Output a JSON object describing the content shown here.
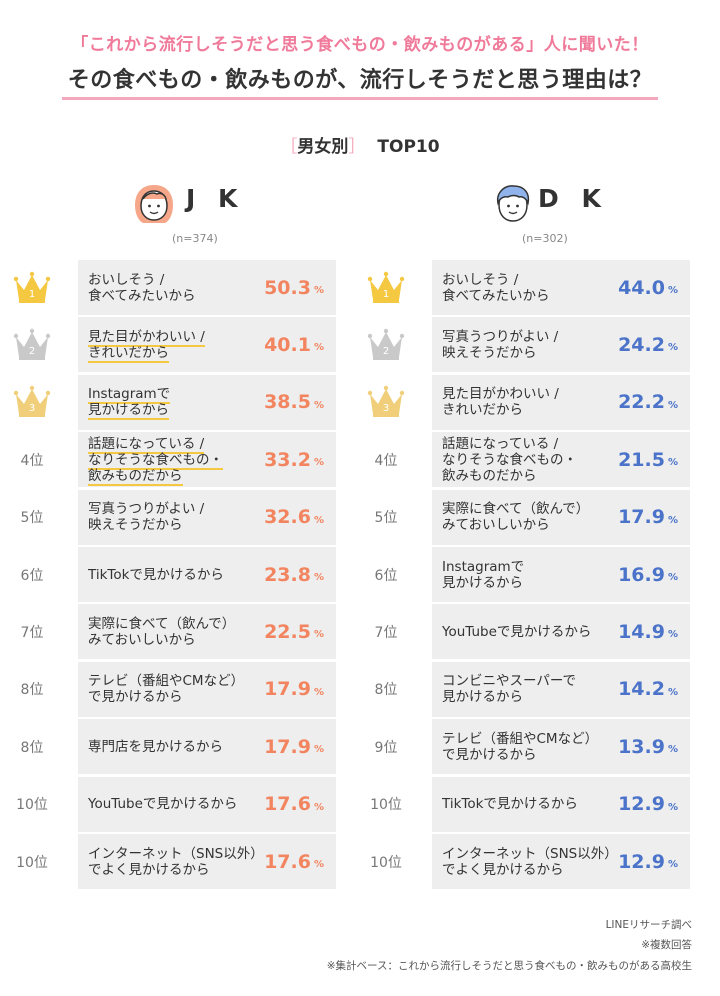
{
  "header": {
    "subtitle": "「これから流行しそうだと思う食べもの・飲みものがある」人に聞いた！",
    "title": "その食べもの・飲みものが、流行しそうだと思う理由は？"
  },
  "section": {
    "bracket_open": "［",
    "label": "男女別",
    "bracket_close": "］",
    "top": "TOP10"
  },
  "colors": {
    "jk_accent": "#f28560",
    "dk_accent": "#4a73c9",
    "title_pink": "#f07a9a",
    "highlight": "#f5c842"
  },
  "chart_data": [
    {
      "type": "table",
      "group": "J K",
      "n": "(n=374)",
      "percent_unit": "%",
      "rows": [
        {
          "rank": "1",
          "lines": [
            "おいしそう /",
            "食べてみたいから"
          ],
          "value": "50.3",
          "crown": "gold"
        },
        {
          "rank": "2",
          "lines": [
            "見た目がかわいい /",
            "きれいだから"
          ],
          "value": "40.1",
          "crown": "silver"
        },
        {
          "rank": "3",
          "lines": [
            "Instagramで",
            "見かけるから"
          ],
          "value": "38.5",
          "crown": "bronze"
        },
        {
          "rank": "4位",
          "lines": [
            "話題になっている /",
            "なりそうな食べもの・",
            "飲みものだから"
          ],
          "value": "33.2"
        },
        {
          "rank": "5位",
          "lines": [
            "写真うつりがよい /",
            "映えそうだから"
          ],
          "value": "32.6"
        },
        {
          "rank": "6位",
          "lines": [
            "TikTokで見かけるから"
          ],
          "value": "23.8"
        },
        {
          "rank": "7位",
          "lines": [
            "実際に食べて（飲んで）",
            "みておいしいから"
          ],
          "value": "22.5"
        },
        {
          "rank": "8位",
          "lines": [
            "テレビ（番組やCMなど）",
            "で見かけるから"
          ],
          "value": "17.9"
        },
        {
          "rank": "8位",
          "lines": [
            "専門店を見かけるから"
          ],
          "value": "17.9"
        },
        {
          "rank": "10位",
          "lines": [
            "YouTubeで見かけるから"
          ],
          "value": "17.6"
        },
        {
          "rank": "10位",
          "lines": [
            "インターネット（SNS以外）",
            "でよく見かけるから"
          ],
          "value": "17.6"
        }
      ]
    },
    {
      "type": "table",
      "group": "D K",
      "n": "(n=302)",
      "percent_unit": "%",
      "rows": [
        {
          "rank": "1",
          "lines": [
            "おいしそう /",
            "食べてみたいから"
          ],
          "value": "44.0",
          "crown": "gold"
        },
        {
          "rank": "2",
          "lines": [
            "写真うつりがよい /",
            "映えそうだから"
          ],
          "value": "24.2",
          "crown": "silver"
        },
        {
          "rank": "3",
          "lines": [
            "見た目がかわいい /",
            "きれいだから"
          ],
          "value": "22.2",
          "crown": "bronze"
        },
        {
          "rank": "4位",
          "lines": [
            "話題になっている /",
            "なりそうな食べもの・",
            "飲みものだから"
          ],
          "value": "21.5"
        },
        {
          "rank": "5位",
          "lines": [
            "実際に食べて（飲んで）",
            "みておいしいから"
          ],
          "value": "17.9"
        },
        {
          "rank": "6位",
          "lines": [
            "Instagramで",
            "見かけるから"
          ],
          "value": "16.9"
        },
        {
          "rank": "7位",
          "lines": [
            "YouTubeで見かけるから"
          ],
          "value": "14.9"
        },
        {
          "rank": "8位",
          "lines": [
            "コンビニやスーパーで",
            "見かけるから"
          ],
          "value": "14.2"
        },
        {
          "rank": "9位",
          "lines": [
            "テレビ（番組やCMなど）",
            "で見かけるから"
          ],
          "value": "13.9"
        },
        {
          "rank": "10位",
          "lines": [
            "TikTokで見かけるから"
          ],
          "value": "12.9"
        },
        {
          "rank": "10位",
          "lines": [
            "インターネット（SNS以外）",
            "でよく見かけるから"
          ],
          "value": "12.9"
        }
      ]
    }
  ],
  "footer": {
    "source": "LINEリサーチ調べ",
    "multi": "※複数回答",
    "base": "※集計ベース：これから流行しそうだと思う食べもの・飲みものがある高校生"
  }
}
